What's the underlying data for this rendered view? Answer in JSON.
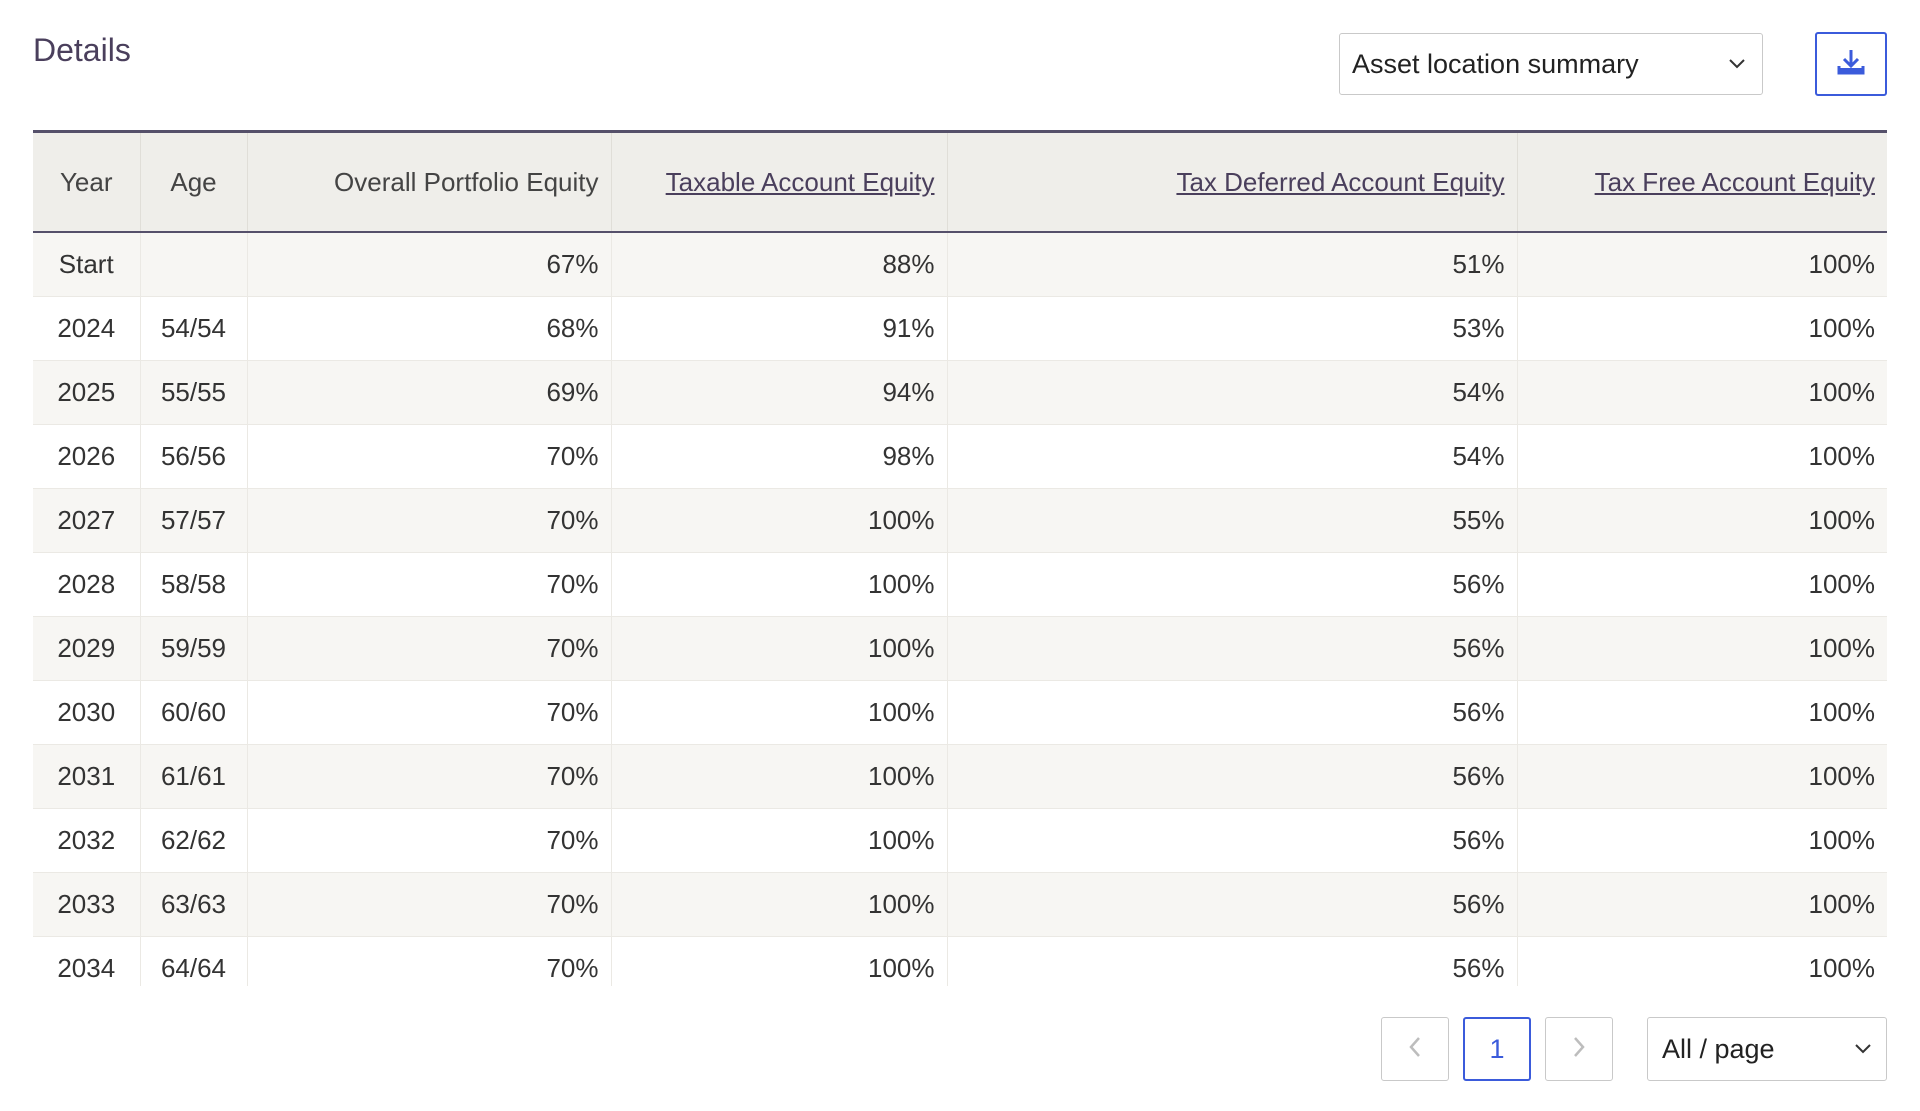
{
  "header": {
    "title": "Details",
    "view_select": {
      "value": "Asset location summary"
    },
    "download_icon": "download-icon"
  },
  "table": {
    "columns": [
      {
        "label": "Year"
      },
      {
        "label": "Age"
      },
      {
        "label": "Overall Portfolio Equity"
      },
      {
        "label": "Taxable Account Equity"
      },
      {
        "label": "Tax Deferred Account Equity"
      },
      {
        "label": "Tax Free Account Equity"
      }
    ],
    "rows": [
      [
        "Start",
        "",
        "67%",
        "88%",
        "51%",
        "100%"
      ],
      [
        "2024",
        "54/54",
        "68%",
        "91%",
        "53%",
        "100%"
      ],
      [
        "2025",
        "55/55",
        "69%",
        "94%",
        "54%",
        "100%"
      ],
      [
        "2026",
        "56/56",
        "70%",
        "98%",
        "54%",
        "100%"
      ],
      [
        "2027",
        "57/57",
        "70%",
        "100%",
        "55%",
        "100%"
      ],
      [
        "2028",
        "58/58",
        "70%",
        "100%",
        "56%",
        "100%"
      ],
      [
        "2029",
        "59/59",
        "70%",
        "100%",
        "56%",
        "100%"
      ],
      [
        "2030",
        "60/60",
        "70%",
        "100%",
        "56%",
        "100%"
      ],
      [
        "2031",
        "61/61",
        "70%",
        "100%",
        "56%",
        "100%"
      ],
      [
        "2032",
        "62/62",
        "70%",
        "100%",
        "56%",
        "100%"
      ],
      [
        "2033",
        "63/63",
        "70%",
        "100%",
        "56%",
        "100%"
      ],
      [
        "2034",
        "64/64",
        "70%",
        "100%",
        "56%",
        "100%"
      ]
    ]
  },
  "pagination": {
    "current_page": "1",
    "prev_icon": "chevron-left-icon",
    "next_icon": "chevron-right-icon",
    "page_size": "All / page"
  },
  "colors": {
    "accent": "#3b5bdb",
    "header_bg": "#efeeea",
    "title": "#4a3f5c"
  }
}
